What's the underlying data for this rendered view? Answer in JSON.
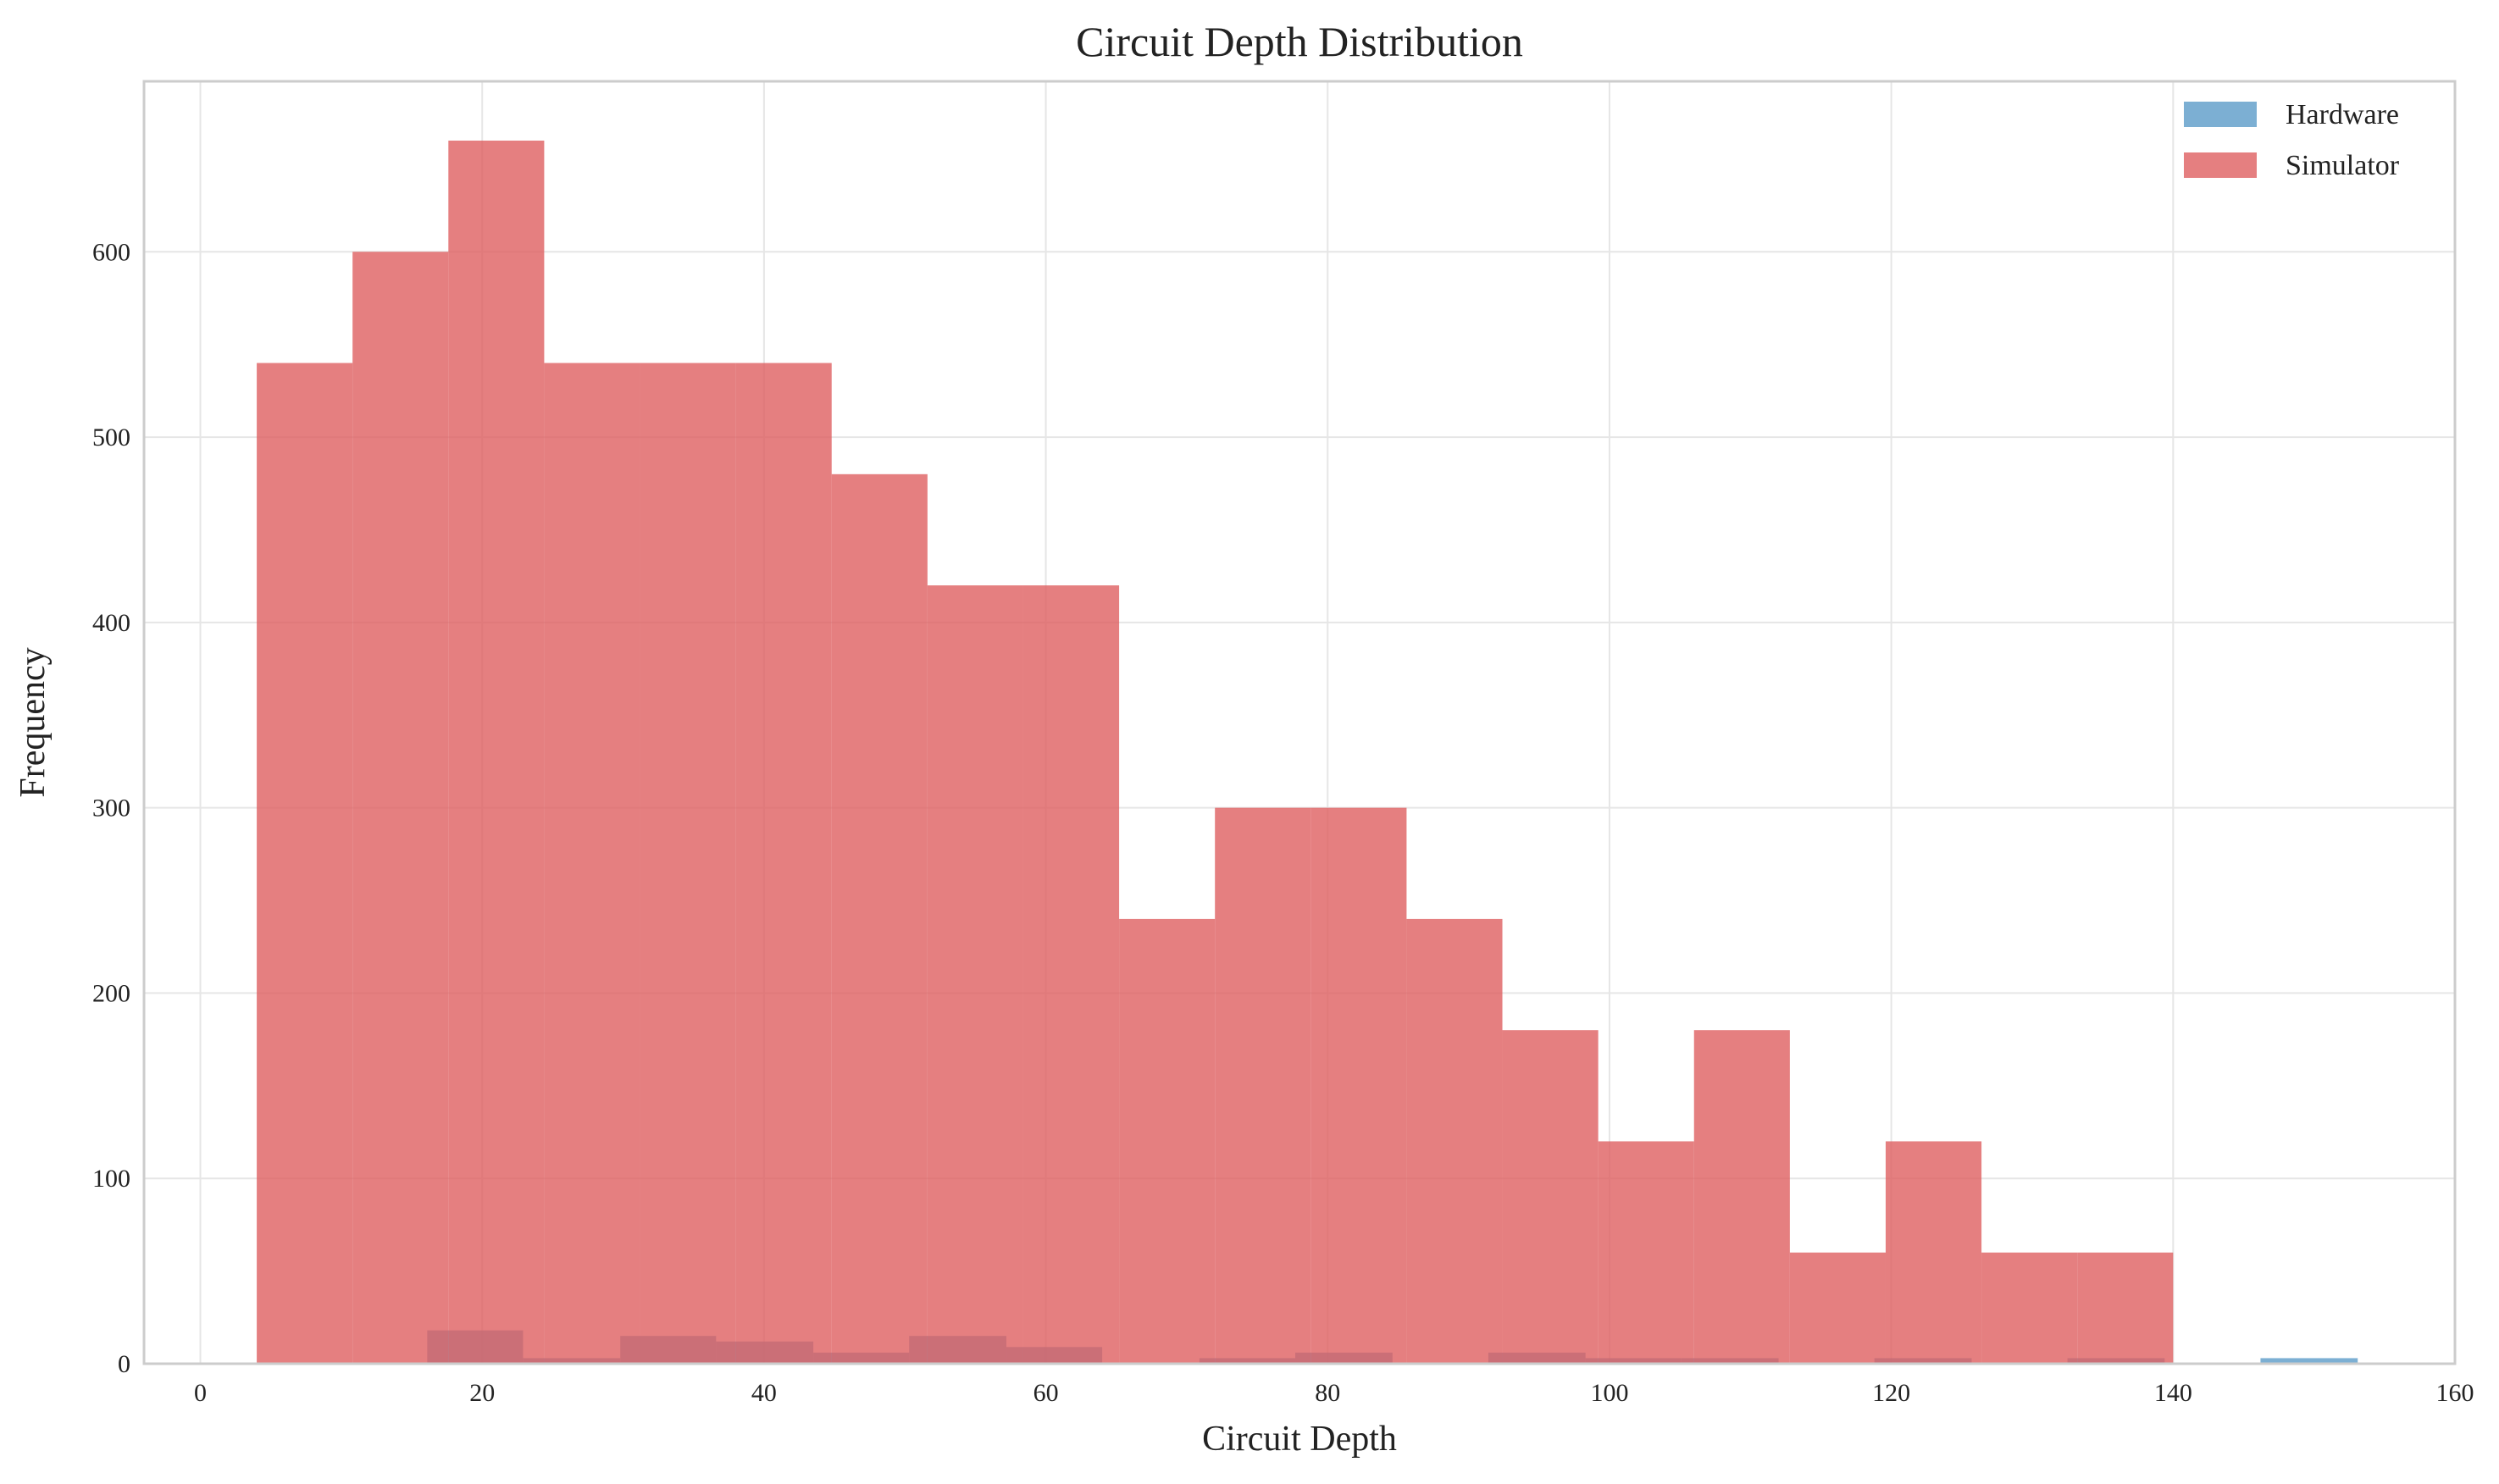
{
  "chart_data": {
    "type": "bar",
    "title": "Circuit Depth Distribution",
    "xlabel": "Circuit Depth",
    "ylabel": "Frequency",
    "xlim": [
      -4,
      160
    ],
    "ylim": [
      0,
      692
    ],
    "xticks": [
      0,
      20,
      40,
      60,
      80,
      100,
      120,
      140,
      160
    ],
    "yticks": [
      0,
      100,
      200,
      300,
      400,
      500,
      600
    ],
    "grid": true,
    "legend_position": "top-right",
    "series": [
      {
        "name": "Hardware",
        "color": "#5b9bc8",
        "bins": [
          {
            "x0": 16.1,
            "x1": 22.9,
            "value": 18
          },
          {
            "x0": 22.9,
            "x1": 29.8,
            "value": 3
          },
          {
            "x0": 29.8,
            "x1": 36.6,
            "value": 15
          },
          {
            "x0": 36.6,
            "x1": 43.5,
            "value": 12
          },
          {
            "x0": 43.5,
            "x1": 50.3,
            "value": 6
          },
          {
            "x0": 50.3,
            "x1": 57.2,
            "value": 15
          },
          {
            "x0": 57.2,
            "x1": 64.0,
            "value": 9
          },
          {
            "x0": 70.9,
            "x1": 77.7,
            "value": 3
          },
          {
            "x0": 77.7,
            "x1": 84.6,
            "value": 6
          },
          {
            "x0": 91.4,
            "x1": 98.3,
            "value": 6
          },
          {
            "x0": 98.3,
            "x1": 105.1,
            "value": 3
          },
          {
            "x0": 105.1,
            "x1": 112.0,
            "value": 3
          },
          {
            "x0": 118.8,
            "x1": 125.7,
            "value": 3
          },
          {
            "x0": 132.5,
            "x1": 139.4,
            "value": 3
          },
          {
            "x0": 146.2,
            "x1": 153.1,
            "value": 3
          }
        ]
      },
      {
        "name": "Simulator",
        "color": "#df5f60",
        "bins": [
          {
            "x0": 4.0,
            "x1": 10.8,
            "value": 540
          },
          {
            "x0": 10.8,
            "x1": 17.6,
            "value": 600
          },
          {
            "x0": 17.6,
            "x1": 24.4,
            "value": 660
          },
          {
            "x0": 24.4,
            "x1": 31.2,
            "value": 540
          },
          {
            "x0": 31.2,
            "x1": 38.0,
            "value": 540
          },
          {
            "x0": 38.0,
            "x1": 44.8,
            "value": 540
          },
          {
            "x0": 44.8,
            "x1": 51.6,
            "value": 480
          },
          {
            "x0": 51.6,
            "x1": 58.4,
            "value": 420
          },
          {
            "x0": 58.4,
            "x1": 65.2,
            "value": 420
          },
          {
            "x0": 65.2,
            "x1": 72.0,
            "value": 240
          },
          {
            "x0": 72.0,
            "x1": 78.8,
            "value": 300
          },
          {
            "x0": 78.8,
            "x1": 85.6,
            "value": 300
          },
          {
            "x0": 85.6,
            "x1": 92.4,
            "value": 240
          },
          {
            "x0": 92.4,
            "x1": 99.2,
            "value": 180
          },
          {
            "x0": 99.2,
            "x1": 106.0,
            "value": 120
          },
          {
            "x0": 106.0,
            "x1": 112.8,
            "value": 180
          },
          {
            "x0": 112.8,
            "x1": 119.6,
            "value": 60
          },
          {
            "x0": 119.6,
            "x1": 126.4,
            "value": 120
          },
          {
            "x0": 126.4,
            "x1": 133.2,
            "value": 60
          },
          {
            "x0": 133.2,
            "x1": 140.0,
            "value": 60
          }
        ]
      }
    ]
  }
}
